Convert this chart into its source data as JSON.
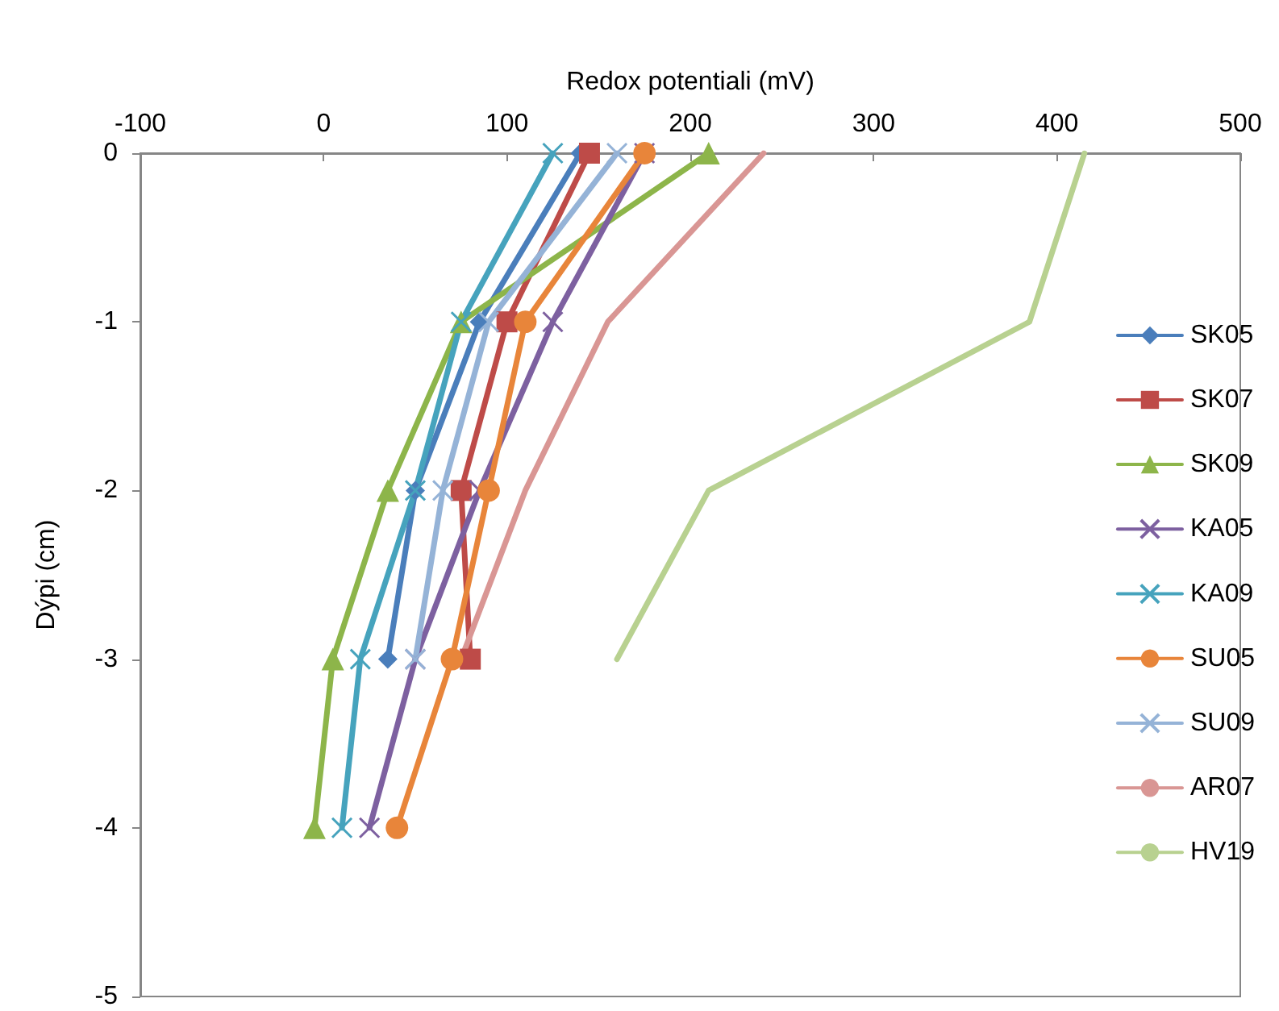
{
  "chart_data": {
    "type": "line",
    "xlabel": "Redox potentiali (mV)",
    "ylabel": "Dýpi (cm)",
    "xlim": [
      -100,
      500
    ],
    "xticks": [
      -100,
      0,
      100,
      200,
      300,
      400,
      500
    ],
    "ylim": [
      -5,
      0
    ],
    "yticks": [
      -5,
      -4,
      -3,
      -2,
      -1,
      0
    ],
    "grid": false,
    "legend": "right",
    "series": [
      {
        "name": "SK05",
        "color": "#4a7ebb",
        "marker": "diamond",
        "x": [
          140,
          85,
          50,
          35
        ],
        "values": [
          0,
          -1,
          -2,
          -3
        ]
      },
      {
        "name": "SK07",
        "color": "#be4b48",
        "marker": "square",
        "x": [
          145,
          100,
          75,
          80
        ],
        "values": [
          0,
          -1,
          -2,
          -3
        ]
      },
      {
        "name": "SK09",
        "color": "#8db54a",
        "marker": "triangle",
        "x": [
          210,
          75,
          35,
          5,
          -5
        ],
        "values": [
          0,
          -1,
          -2,
          -3,
          -4
        ]
      },
      {
        "name": "KA05",
        "color": "#7d60a0",
        "marker": "cross",
        "x": [
          175,
          125,
          85,
          50,
          25
        ],
        "values": [
          0,
          -1,
          -2,
          -3,
          -4
        ]
      },
      {
        "name": "KA09",
        "color": "#46a3bd",
        "marker": "cross",
        "x": [
          125,
          75,
          50,
          20,
          10
        ],
        "values": [
          0,
          -1,
          -2,
          -3,
          -4
        ]
      },
      {
        "name": "SU05",
        "color": "#e8853a",
        "marker": "circle",
        "x": [
          175,
          110,
          90,
          70,
          40
        ],
        "values": [
          0,
          -1,
          -2,
          -3,
          -4
        ]
      },
      {
        "name": "SU09",
        "color": "#95b3d7",
        "marker": "cross",
        "x": [
          160,
          90,
          65,
          50
        ],
        "values": [
          0,
          -1,
          -2,
          -3
        ]
      },
      {
        "name": "AR07",
        "color": "#d99694",
        "marker": "none",
        "x": [
          240,
          155,
          110,
          75
        ],
        "values": [
          0,
          -1,
          -2,
          -3
        ]
      },
      {
        "name": "HV19",
        "color": "#b8d190",
        "marker": "none",
        "x": [
          415,
          385,
          210,
          160
        ],
        "values": [
          0,
          -1,
          -2,
          -3
        ]
      }
    ]
  }
}
